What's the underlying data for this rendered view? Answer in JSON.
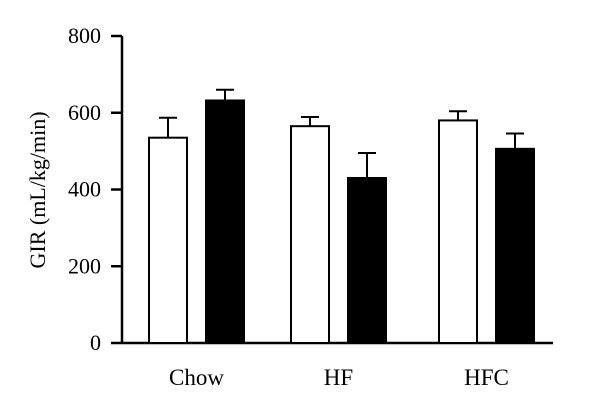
{
  "chart_data": {
    "type": "bar",
    "title": "",
    "xlabel": "",
    "ylabel": "GIR (mL/kg/min)",
    "ylim": [
      0,
      800
    ],
    "yticks": [
      0,
      200,
      400,
      600,
      800
    ],
    "categories": [
      "Chow",
      "HF",
      "HFC"
    ],
    "series": [
      {
        "values": [
          535,
          565,
          580
        ],
        "errors": [
          52,
          24,
          24
        ],
        "fill": "#ffffff"
      },
      {
        "values": [
          632,
          430,
          506
        ],
        "errors": [
          28,
          65,
          40
        ],
        "fill": "#000000"
      }
    ],
    "grid": false,
    "legend": "none"
  }
}
